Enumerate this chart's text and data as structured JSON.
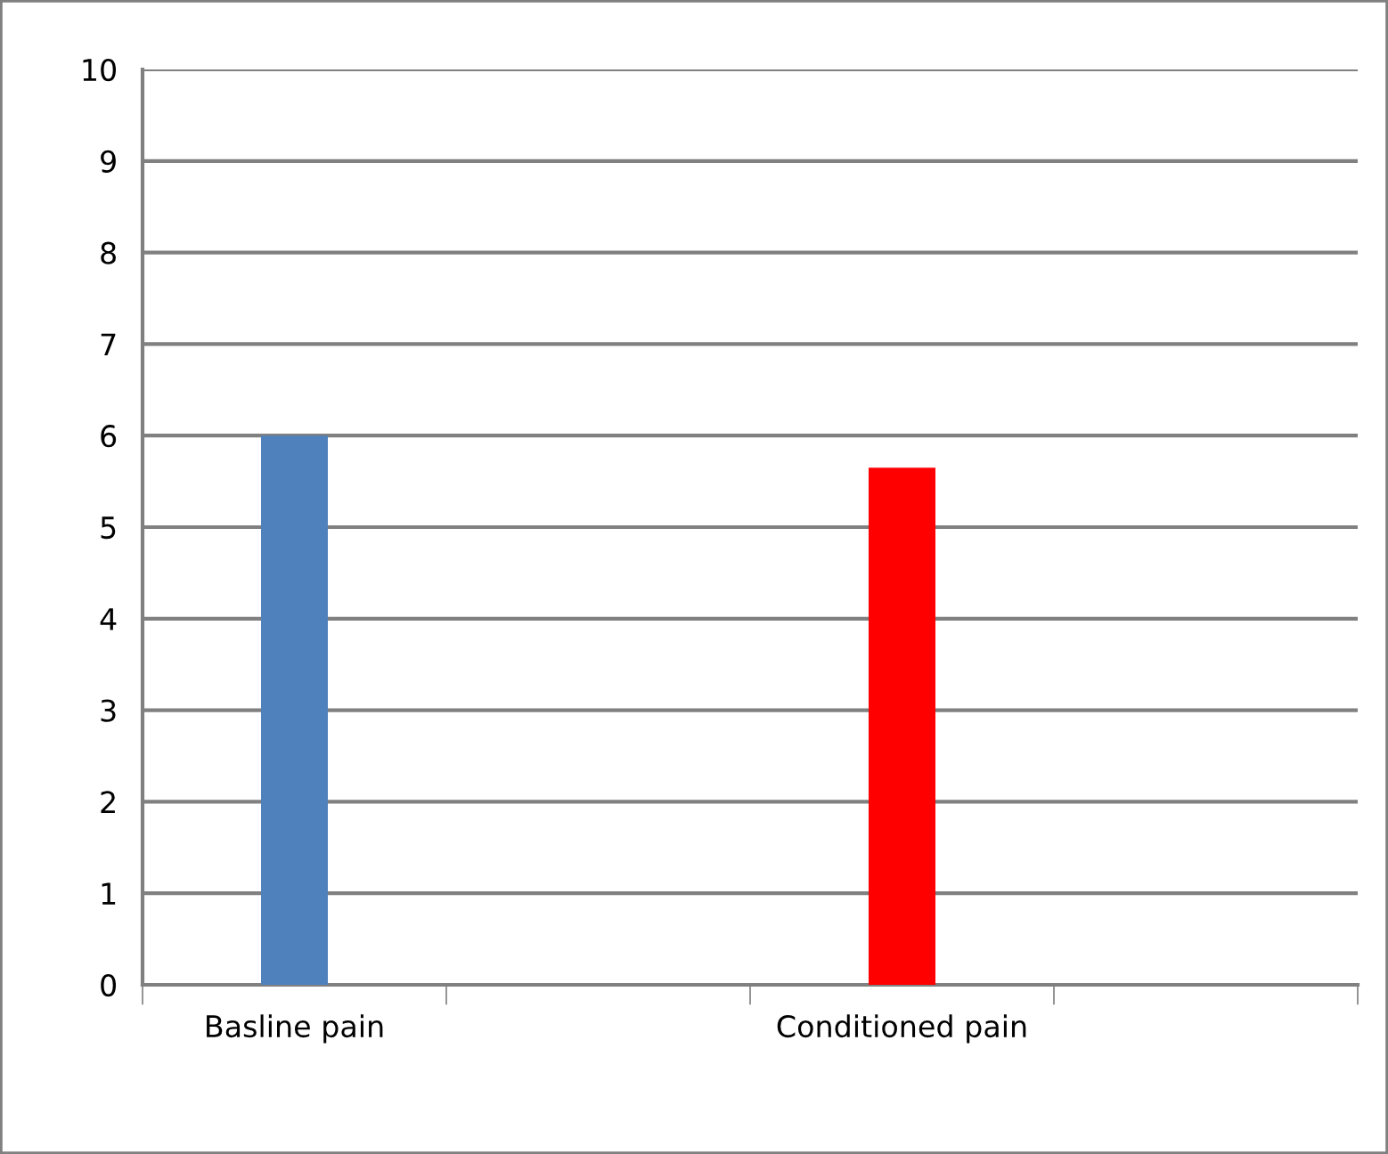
{
  "chart_data": {
    "type": "bar",
    "categories": [
      "Basline pain",
      null,
      "Conditioned pain",
      null
    ],
    "values": [
      6,
      null,
      5.65,
      null
    ],
    "colors": [
      "#4f81bd",
      null,
      "#ff0000",
      null
    ],
    "ylim": [
      0,
      10
    ],
    "yticks": [
      0,
      1,
      2,
      3,
      4,
      5,
      6,
      7,
      8,
      9,
      10
    ],
    "grid": "y",
    "legend": false
  }
}
